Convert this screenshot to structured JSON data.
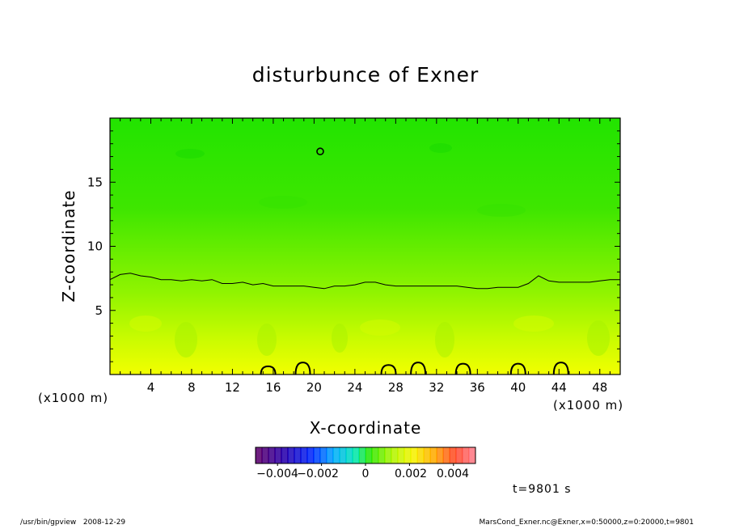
{
  "footer": {
    "program": "/usr/bin/gpview",
    "date": "2008-12-29",
    "source": "MarsCond_Exner.nc@Exner,x=0:50000,z=0:20000,t=9801"
  },
  "colors": {
    "field_top": "#22e400",
    "field_mid": "#8ef200",
    "field_bottom": "#eaff00",
    "contour": "#000000"
  },
  "chart_data": {
    "type": "heatmap",
    "title": "disturbunce of Exner",
    "xlabel": "X-coordinate",
    "ylabel": "Z-coordinate",
    "x_unit_left": "(x1000 m)",
    "x_unit_right": "(x1000 m)",
    "xlim": [
      0,
      50
    ],
    "ylim": [
      0,
      20
    ],
    "x_ticks": [
      4,
      8,
      12,
      16,
      20,
      24,
      28,
      32,
      36,
      40,
      44,
      48
    ],
    "y_ticks": [
      5,
      10,
      15
    ],
    "time_label": "t=9801 s",
    "zero_contour": {
      "label": "0",
      "x": [
        0,
        1,
        2,
        3,
        4,
        5,
        6,
        7,
        8,
        9,
        10,
        11,
        12,
        13,
        14,
        15,
        16,
        17,
        18,
        19,
        20,
        21,
        22,
        23,
        24,
        25,
        26,
        27,
        28,
        29,
        30,
        31,
        32,
        33,
        34,
        35,
        36,
        37,
        38,
        39,
        40,
        41,
        42,
        43,
        44,
        45,
        46,
        47,
        48,
        49,
        50
      ],
      "z": [
        7.4,
        7.8,
        7.9,
        7.7,
        7.6,
        7.4,
        7.4,
        7.3,
        7.4,
        7.3,
        7.4,
        7.1,
        7.1,
        7.2,
        7.0,
        7.1,
        6.9,
        6.9,
        6.9,
        6.9,
        6.8,
        6.7,
        6.9,
        6.9,
        7.0,
        7.2,
        7.2,
        7.0,
        6.9,
        6.9,
        6.9,
        6.9,
        6.9,
        6.9,
        6.9,
        6.8,
        6.7,
        6.7,
        6.8,
        6.8,
        6.8,
        7.1,
        7.7,
        7.3,
        7.2,
        7.2,
        7.2,
        7.2,
        7.3,
        7.4,
        7.4
      ]
    },
    "closed_contours": [
      {
        "x": 20.6,
        "z": 17.4
      },
      {
        "x": 15.5,
        "z": 0.2
      },
      {
        "x": 18.9,
        "z": 0.5
      },
      {
        "x": 27.3,
        "z": 0.3
      },
      {
        "x": 30.2,
        "z": 0.5
      },
      {
        "x": 34.6,
        "z": 0.4
      },
      {
        "x": 40.0,
        "z": 0.4
      },
      {
        "x": 44.2,
        "z": 0.5
      }
    ],
    "colorbar": {
      "range": [
        -0.005,
        0.005
      ],
      "tick_labels": [
        "−0.004",
        "−0.002",
        "0",
        "0.002",
        "0.004"
      ],
      "tick_values": [
        -0.004,
        -0.002,
        0,
        0.002,
        0.004
      ]
    }
  }
}
